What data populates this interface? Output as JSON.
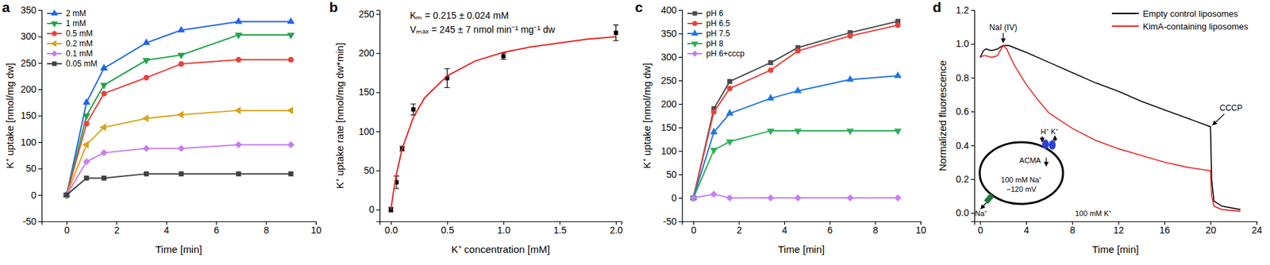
{
  "chart_data": [
    {
      "type": "line",
      "panel": "a",
      "x_label": "Time [min]",
      "y_label": "K⁺ uptake [nmol/mg dw]",
      "xlim": [
        -1,
        10
      ],
      "ylim": [
        -50,
        350
      ],
      "xticks": [
        0,
        2,
        4,
        6,
        8,
        10
      ],
      "yticks": [
        -50,
        0,
        50,
        100,
        150,
        200,
        250,
        300,
        350
      ],
      "legend": "upper left",
      "x": [
        0,
        0.8,
        1.5,
        3.2,
        4.6,
        6.9,
        9
      ],
      "series": [
        {
          "name": "2 mM",
          "color": "#1f66e5",
          "marker": "triangle",
          "values": [
            0,
            175,
            240,
            288,
            312,
            328,
            328
          ]
        },
        {
          "name": "1 mM",
          "color": "#22a34a",
          "marker": "triangle-down",
          "values": [
            0,
            150,
            208,
            255,
            265,
            303,
            303
          ]
        },
        {
          "name": "0.5 mM",
          "color": "#e8413c",
          "marker": "circle",
          "values": [
            0,
            135,
            192,
            222,
            248,
            256,
            256
          ]
        },
        {
          "name": "0.2 mM",
          "color": "#d6a51a",
          "marker": "triangle-left",
          "values": [
            0,
            95,
            128,
            145,
            152,
            160,
            160
          ]
        },
        {
          "name": "0.1 mM",
          "color": "#c77cf0",
          "marker": "diamond",
          "values": [
            0,
            63,
            80,
            88,
            88,
            95,
            95
          ]
        },
        {
          "name": "0.05 mM",
          "color": "#404040",
          "marker": "square",
          "values": [
            0,
            32,
            32,
            40,
            40,
            40,
            40
          ]
        }
      ]
    },
    {
      "type": "scatter",
      "panel": "b",
      "x_label": "K⁺ concentration [mM]",
      "y_label": "K⁺ uptake rate [nmol/mg dw*min]",
      "annotations": [
        "Kₘ = 0.215 ± 0.024 mM",
        "Vₘₐₓ = 245 ± 7 nmol min⁻¹ mg⁻¹ dw"
      ],
      "xlim": [
        -0.1,
        2.05
      ],
      "ylim": [
        -15,
        255
      ],
      "xticks": [
        {
          "value": 0,
          "label": "0.0"
        },
        0.5,
        {
          "value": 1,
          "label": "1.0"
        },
        1.5,
        {
          "value": 2,
          "label": "2.0"
        }
      ],
      "yticks": [
        0,
        50,
        100,
        150,
        200,
        250
      ],
      "series": [
        {
          "type": "scatter",
          "color": "#000000",
          "marker": "square",
          "x": [
            0,
            0.05,
            0.1,
            0.2,
            0.5,
            1,
            2
          ],
          "values": [
            0,
            35,
            78,
            128,
            168,
            196,
            226
          ],
          "errors": [
            3,
            8,
            3,
            7,
            12,
            4,
            10
          ]
        },
        {
          "type": "line",
          "color": "#e8231f",
          "x": [
            0,
            0.02,
            0.05,
            0.1,
            0.2,
            0.3,
            0.5,
            0.75,
            1,
            1.25,
            1.5,
            1.75,
            2
          ],
          "values": [
            0,
            20,
            46,
            78,
            118,
            143,
            171,
            190,
            201,
            208,
            213,
            218,
            221
          ]
        }
      ]
    },
    {
      "type": "line",
      "panel": "c",
      "x_label": "Time [min]",
      "y_label": "K⁺ uptake [nmol/mg dw]",
      "xlim": [
        -0.5,
        10
      ],
      "ylim": [
        -50,
        400
      ],
      "xticks": [
        0,
        2,
        4,
        6,
        8,
        10
      ],
      "yticks": [
        -50,
        0,
        50,
        100,
        150,
        200,
        250,
        300,
        350,
        400
      ],
      "legend": "upper left",
      "x": [
        0,
        0.9,
        1.6,
        3.4,
        4.6,
        6.9,
        9
      ],
      "series": [
        {
          "name": "pH 6",
          "color": "#4d4d4d",
          "marker": "square",
          "values": [
            0,
            190,
            248,
            288,
            320,
            352,
            376
          ]
        },
        {
          "name": "pH 6.5",
          "color": "#e8413c",
          "marker": "circle",
          "values": [
            0,
            183,
            233,
            272,
            313,
            345,
            368
          ]
        },
        {
          "name": "pH 7.5",
          "color": "#1f75e0",
          "marker": "triangle",
          "values": [
            0,
            140,
            180,
            212,
            228,
            252,
            260
          ]
        },
        {
          "name": "pH 8",
          "color": "#2ab055",
          "marker": "triangle-down",
          "values": [
            0,
            102,
            120,
            143,
            143,
            143,
            143
          ]
        },
        {
          "name": "pH 6+cccp",
          "color": "#c77cf0",
          "marker": "diamond",
          "values": [
            0,
            8,
            0,
            0,
            0,
            0,
            0
          ]
        }
      ]
    },
    {
      "type": "line",
      "panel": "d",
      "x_label": "Time [min]",
      "y_label": "Normalized fluorescence",
      "annotations": [
        "NaI (IV)",
        "CCCP",
        "H⁺ K⁺",
        "ACMA",
        "100 mM Na⁺",
        "−120 mV",
        "Na⁺",
        "100 mM K⁺"
      ],
      "xlim": [
        -0.5,
        24
      ],
      "ylim": [
        -0.05,
        1.2
      ],
      "xticks": [
        0,
        4,
        8,
        12,
        16,
        20,
        24
      ],
      "yticks": [
        {
          "value": 0,
          "label": "0.0"
        },
        0.2,
        0.4,
        0.6,
        0.8,
        {
          "value": 1,
          "label": "1.0"
        },
        1.2
      ],
      "legend": "upper right",
      "series": [
        {
          "name": "Empty control liposomes",
          "color": "#000000",
          "x": [
            0,
            0.3,
            0.5,
            1,
            1.5,
            2,
            2.5,
            4,
            6,
            8,
            10,
            12,
            14,
            16,
            18,
            20,
            20.1,
            20.3,
            21,
            22.6
          ],
          "values": [
            0.92,
            0.96,
            0.97,
            0.96,
            0.97,
            0.99,
            0.99,
            0.95,
            0.89,
            0.83,
            0.77,
            0.72,
            0.66,
            0.61,
            0.56,
            0.51,
            0.2,
            0.07,
            0.04,
            0.02
          ]
        },
        {
          "name": "KimA-containing liposomes",
          "color": "#e8231f",
          "x": [
            0,
            0.3,
            0.5,
            1,
            1.5,
            2,
            2.3,
            3,
            4,
            5,
            6,
            8,
            10,
            12,
            14,
            16,
            18,
            20,
            20.1,
            20.3,
            21,
            22.6
          ],
          "values": [
            0.92,
            0.93,
            0.93,
            0.92,
            0.93,
            0.99,
            0.97,
            0.87,
            0.76,
            0.67,
            0.59,
            0.5,
            0.43,
            0.38,
            0.34,
            0.3,
            0.27,
            0.25,
            0.1,
            0.04,
            0.02,
            0.01
          ]
        }
      ]
    }
  ]
}
